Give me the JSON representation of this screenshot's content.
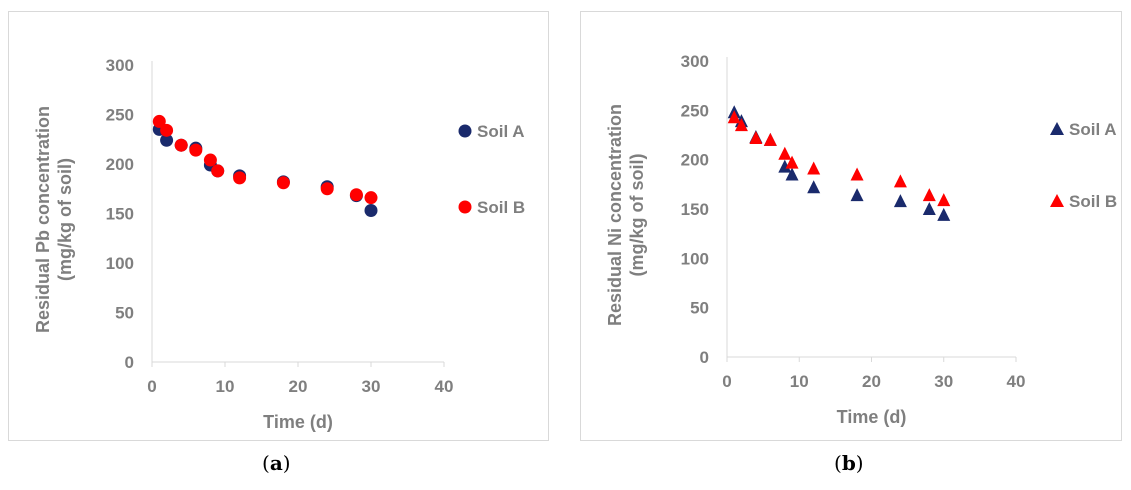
{
  "chart_data": [
    {
      "type": "scatter",
      "panel": "a",
      "xlabel": "Time (d)",
      "ylabel_lines": [
        "Residual Pb concentration",
        "(mg/kg of soil)"
      ],
      "xlim": [
        0,
        40
      ],
      "ylim": [
        0,
        300
      ],
      "xticks": [
        0,
        10,
        20,
        30,
        40
      ],
      "yticks": [
        0,
        50,
        100,
        150,
        200,
        250,
        300
      ],
      "grid": false,
      "legend_position": "right",
      "series": [
        {
          "name": "Soil A",
          "marker": "circle",
          "color": "#1a2a6c",
          "x": [
            1,
            2,
            4,
            6,
            8,
            9,
            12,
            18,
            24,
            28,
            30
          ],
          "y": [
            235,
            224,
            219,
            216,
            199,
            193,
            188,
            182,
            177,
            168,
            153
          ]
        },
        {
          "name": "Soil B",
          "marker": "circle",
          "color": "#ff0000",
          "x": [
            1,
            2,
            4,
            6,
            8,
            9,
            12,
            18,
            24,
            28,
            30
          ],
          "y": [
            243,
            234,
            219,
            214,
            204,
            193,
            186,
            181,
            175,
            169,
            166
          ]
        }
      ]
    },
    {
      "type": "scatter",
      "panel": "b",
      "xlabel": "Time (d)",
      "ylabel_lines": [
        "Residual Ni concentration",
        "(mg/kg of soil)"
      ],
      "xlim": [
        0,
        40
      ],
      "ylim": [
        0,
        300
      ],
      "xticks": [
        0,
        10,
        20,
        30,
        40
      ],
      "yticks": [
        0,
        50,
        100,
        150,
        200,
        250,
        300
      ],
      "grid": false,
      "legend_position": "right",
      "series": [
        {
          "name": "Soil A",
          "marker": "triangle",
          "color": "#1a2a6c",
          "x": [
            1,
            2,
            4,
            6,
            8,
            9,
            12,
            18,
            24,
            28,
            30
          ],
          "y": [
            248,
            239,
            223,
            220,
            193,
            185,
            172,
            164,
            158,
            150,
            144
          ]
        },
        {
          "name": "Soil B",
          "marker": "triangle",
          "color": "#ff0000",
          "x": [
            1,
            2,
            4,
            6,
            8,
            9,
            12,
            18,
            24,
            28,
            30
          ],
          "y": [
            243,
            235,
            222,
            220,
            206,
            197,
            191,
            185,
            178,
            164,
            159
          ]
        }
      ]
    }
  ],
  "captions": {
    "a": "a",
    "b": "b"
  },
  "colors": {
    "axis": "#d9d9d9",
    "tick_text": "#7f7f7f"
  }
}
